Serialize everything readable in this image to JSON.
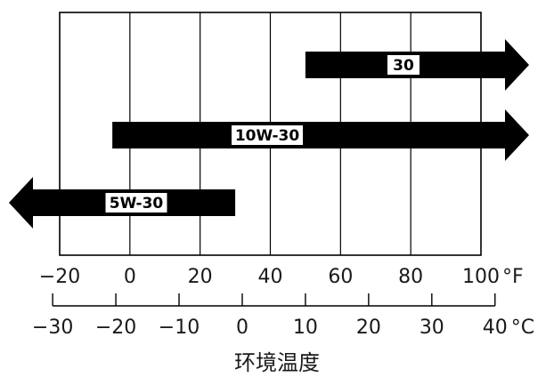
{
  "chart_data": {
    "type": "range-bar",
    "fahrenheit_ticks": [
      "−20",
      "0",
      "20",
      "40",
      "60",
      "80",
      "100"
    ],
    "fahrenheit_unit": "°F",
    "celsius_ticks": [
      "−30",
      "−20",
      "−10",
      "0",
      "10",
      "20",
      "30",
      "40"
    ],
    "celsius_unit": "°C",
    "xlabel": "环境温度",
    "xlim_f": [
      -20,
      100
    ],
    "grid": true,
    "series": [
      {
        "name": "30",
        "from_f": 50,
        "to_f": 100,
        "arrow": "right"
      },
      {
        "name": "10W-30",
        "from_f": -5,
        "to_f": 100,
        "arrow": "right"
      },
      {
        "name": "5W-30",
        "from_f": -20,
        "to_f": 30,
        "arrow": "left"
      }
    ]
  }
}
